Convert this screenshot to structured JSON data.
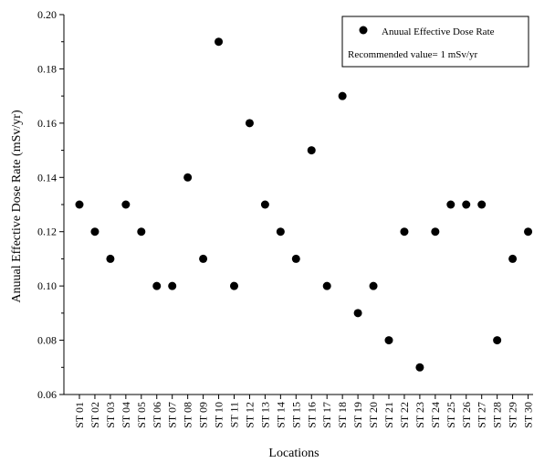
{
  "chart_data": {
    "type": "scatter",
    "xlabel": "Locations",
    "ylabel": "Anuual Effective Dose Rate (mSv/yr)",
    "ylim": [
      0.06,
      0.2
    ],
    "yticks": [
      "0.06",
      "0.08",
      "0.10",
      "0.12",
      "0.14",
      "0.16",
      "0.18",
      "0.20"
    ],
    "categories": [
      "ST 01",
      "ST 02",
      "ST 03",
      "ST 04",
      "ST 05",
      "ST 06",
      "ST 07",
      "ST 08",
      "ST 09",
      "ST 10",
      "ST 11",
      "ST 12",
      "ST 13",
      "ST 14",
      "ST 15",
      "ST 16",
      "ST 17",
      "ST 18",
      "ST 19",
      "ST 20",
      "ST 21",
      "ST 22",
      "ST 23",
      "ST 24",
      "ST 25",
      "ST 26",
      "ST 27",
      "ST 28",
      "ST 29",
      "ST 30"
    ],
    "series": [
      {
        "name": "Anuual Effective Dose Rate",
        "values": [
          0.13,
          0.12,
          0.11,
          0.13,
          0.12,
          0.1,
          0.1,
          0.14,
          0.11,
          0.19,
          0.1,
          0.16,
          0.13,
          0.12,
          0.11,
          0.15,
          0.1,
          0.17,
          0.09,
          0.1,
          0.08,
          0.12,
          0.07,
          0.12,
          0.13,
          0.13,
          0.13,
          0.08,
          0.11,
          0.12
        ]
      }
    ],
    "legend": {
      "placement": "top-right",
      "series_label": "Anuual Effective Dose Rate",
      "note": "Recommended value= 1 mSv/yr"
    },
    "marker_color": "#000000",
    "grid": false
  }
}
